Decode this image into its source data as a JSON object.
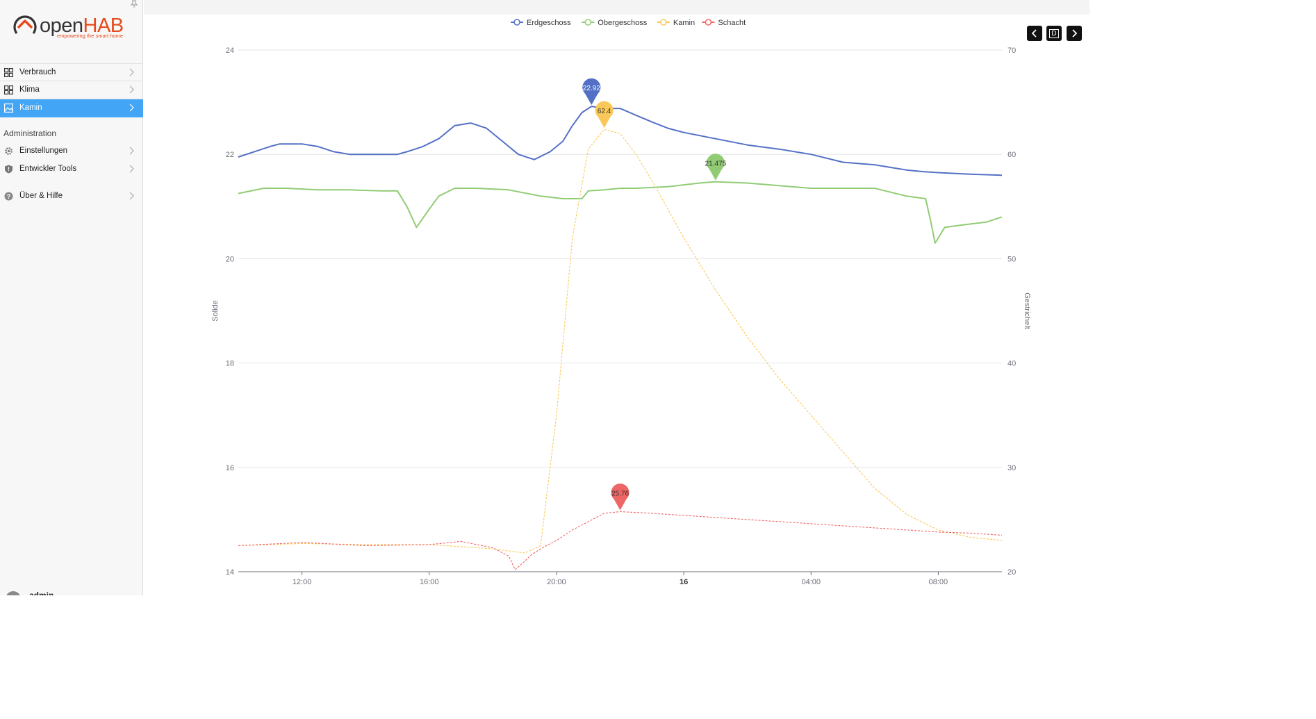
{
  "app": {
    "logo_main": "open",
    "logo_accent": "HAB",
    "tagline": "empowering the smart home",
    "brand_color": "#e64a19"
  },
  "sidebar": {
    "items": [
      {
        "label": "Verbrauch",
        "icon": "dashboard-grid-icon",
        "active": false
      },
      {
        "label": "Klima",
        "icon": "dashboard-grid-icon",
        "active": false
      },
      {
        "label": "Kamin",
        "icon": "chart-image-icon",
        "active": true
      }
    ],
    "admin_heading": "Administration",
    "admin_items": [
      {
        "label": "Einstellungen",
        "icon": "gear-icon"
      },
      {
        "label": "Entwickler Tools",
        "icon": "shield-icon"
      }
    ],
    "help_item": {
      "label": "Über & Hilfe",
      "icon": "help-circle-icon"
    },
    "user": "admin",
    "active_color": "#42a5f5"
  },
  "toolbar": {
    "prev_icon": "chevron-left-icon",
    "period_label": "D",
    "next_icon": "chevron-right-icon"
  },
  "chart_data": {
    "type": "line",
    "legend": [
      "Erdgeschoss",
      "Obergeschoss",
      "Kamin",
      "Schacht"
    ],
    "legend_position": "top-center",
    "colors": {
      "Erdgeschoss": "#5470c6",
      "Obergeschoss": "#91cc75",
      "Kamin": "#fac858",
      "Schacht": "#ee6666"
    },
    "x_ticks": [
      "12:00",
      "16:00",
      "20:00",
      "16",
      "04:00",
      "08:00"
    ],
    "x_range_hours": [
      10.0,
      34.0
    ],
    "y_left": {
      "label": "Solide",
      "min": 14,
      "max": 24,
      "ticks": [
        14,
        16,
        18,
        20,
        22,
        24
      ]
    },
    "y_right": {
      "label": "Gestrichelt",
      "min": 20,
      "max": 70,
      "ticks": [
        20,
        30,
        40,
        50,
        60,
        70
      ]
    },
    "grid": true,
    "series": [
      {
        "name": "Erdgeschoss",
        "axis": "left",
        "style": "solid",
        "x": [
          10.0,
          10.5,
          11.0,
          11.3,
          12.0,
          12.5,
          13.0,
          13.5,
          14.0,
          14.5,
          15.0,
          15.3,
          15.8,
          16.3,
          16.8,
          17.3,
          17.8,
          18.3,
          18.8,
          19.3,
          19.8,
          20.2,
          20.5,
          20.8,
          21.1,
          21.5,
          22.0,
          22.5,
          23.0,
          23.5,
          24.0,
          25.0,
          26.0,
          27.0,
          28.0,
          29.0,
          30.0,
          30.5,
          31.0,
          31.5,
          32.0,
          33.0,
          34.0
        ],
        "values": [
          21.95,
          22.05,
          22.15,
          22.2,
          22.2,
          22.15,
          22.05,
          22.0,
          22.0,
          22.0,
          22.0,
          22.05,
          22.15,
          22.3,
          22.55,
          22.6,
          22.5,
          22.25,
          22.0,
          21.9,
          22.05,
          22.25,
          22.55,
          22.8,
          22.92,
          22.88,
          22.88,
          22.75,
          22.62,
          22.5,
          22.42,
          22.3,
          22.18,
          22.1,
          22.0,
          21.85,
          21.8,
          21.75,
          21.7,
          21.67,
          21.65,
          21.62,
          21.6
        ]
      },
      {
        "name": "Obergeschoss",
        "axis": "left",
        "style": "solid",
        "x": [
          10.0,
          10.8,
          11.5,
          12.5,
          13.5,
          14.5,
          15.0,
          15.3,
          15.6,
          16.0,
          16.3,
          16.8,
          17.5,
          18.5,
          19.5,
          20.2,
          20.8,
          21.0,
          21.5,
          22.0,
          22.5,
          23.5,
          24.5,
          25.0,
          26.0,
          27.0,
          28.0,
          29.0,
          30.0,
          31.0,
          31.6,
          31.75,
          31.9,
          32.2,
          32.8,
          33.5,
          34.0
        ],
        "values": [
          21.25,
          21.35,
          21.35,
          21.32,
          21.32,
          21.3,
          21.3,
          21.0,
          20.6,
          20.95,
          21.2,
          21.35,
          21.35,
          21.32,
          21.2,
          21.15,
          21.15,
          21.3,
          21.32,
          21.35,
          21.35,
          21.38,
          21.45,
          21.475,
          21.45,
          21.4,
          21.35,
          21.35,
          21.35,
          21.2,
          21.15,
          20.75,
          20.3,
          20.6,
          20.65,
          20.7,
          20.8
        ]
      },
      {
        "name": "Kamin",
        "axis": "right",
        "style": "dashed",
        "x": [
          10.0,
          12.0,
          14.0,
          16.0,
          18.0,
          19.0,
          19.5,
          20.0,
          20.5,
          21.0,
          21.5,
          22.0,
          22.5,
          23.0,
          24.0,
          25.0,
          26.0,
          27.0,
          28.0,
          29.0,
          30.0,
          31.0,
          32.0,
          33.0,
          34.0
        ],
        "values": [
          22.5,
          22.7,
          22.6,
          22.6,
          22.2,
          21.8,
          22.5,
          35.0,
          52.0,
          60.5,
          62.4,
          62.0,
          60.0,
          57.5,
          52.0,
          47.0,
          42.5,
          38.5,
          35.0,
          31.5,
          28.0,
          25.5,
          24.0,
          23.3,
          23.0
        ]
      },
      {
        "name": "Schacht",
        "axis": "right",
        "style": "dashed",
        "x": [
          10.0,
          12.0,
          14.0,
          16.0,
          17.0,
          18.0,
          18.5,
          18.7,
          19.0,
          19.2,
          19.5,
          20.0,
          20.5,
          21.0,
          21.5,
          22.0,
          23.0,
          24.0,
          25.0,
          26.0,
          27.0,
          28.0,
          29.0,
          30.0,
          31.0,
          32.0,
          33.0,
          34.0
        ],
        "values": [
          22.5,
          22.8,
          22.5,
          22.6,
          22.9,
          22.3,
          21.5,
          20.2,
          21.0,
          21.6,
          22.2,
          23.0,
          24.0,
          24.8,
          25.6,
          25.76,
          25.6,
          25.4,
          25.2,
          25.0,
          24.8,
          24.6,
          24.4,
          24.2,
          24.0,
          23.8,
          23.7,
          23.5
        ]
      }
    ],
    "markers": [
      {
        "series": "Erdgeschoss",
        "label": "22.92",
        "x": 21.1,
        "y": 22.92
      },
      {
        "series": "Kamin",
        "label": "62.4",
        "x": 21.5,
        "y": 62.4
      },
      {
        "series": "Obergeschoss",
        "label": "21.475",
        "x": 25.0,
        "y": 21.475
      },
      {
        "series": "Schacht",
        "label": "25.76",
        "x": 22.0,
        "y": 25.76
      }
    ]
  }
}
